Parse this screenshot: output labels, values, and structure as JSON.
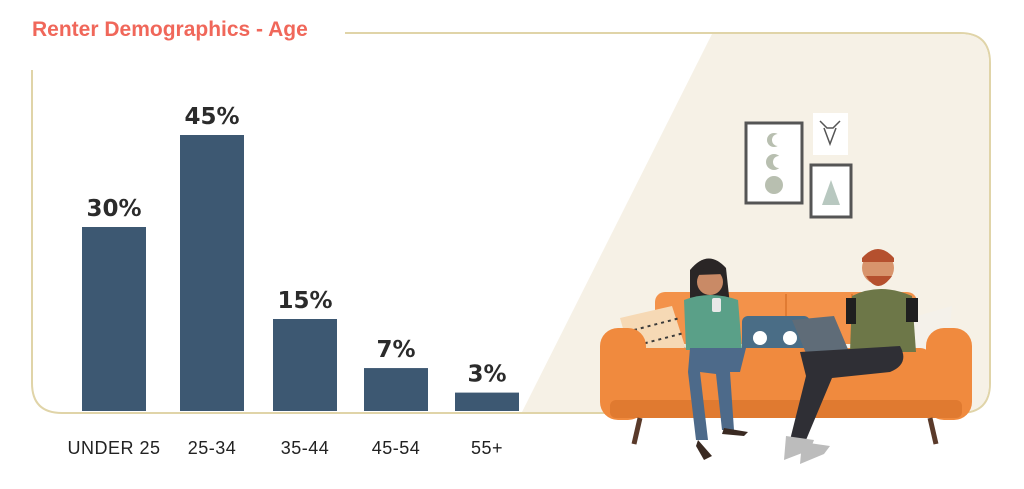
{
  "title": "Renter Demographics - Age",
  "colors": {
    "title": "#f0675a",
    "bar": "#3d5872",
    "frame": "#e0d4a8",
    "scene_bg": "#f6f1e6",
    "sofa": "#f08a3e"
  },
  "illustration": {
    "description_icon": "couple-on-sofa-illustration"
  },
  "chart_data": {
    "type": "bar",
    "title": "Renter Demographics - Age",
    "categories": [
      "UNDER 25",
      "25-34",
      "35-44",
      "45-54",
      "55+"
    ],
    "values": [
      30,
      45,
      15,
      7,
      3
    ],
    "value_labels": [
      "30%",
      "45%",
      "15%",
      "7%",
      "3%"
    ],
    "xlabel": "",
    "ylabel": "",
    "ylim": [
      0,
      45
    ],
    "grid": false,
    "legend": "none"
  }
}
